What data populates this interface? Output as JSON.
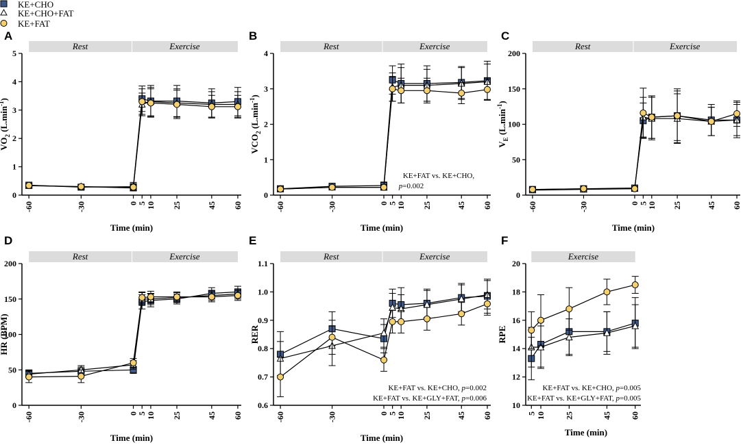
{
  "legend": [
    {
      "label": "KE+CHO",
      "symbol": "square",
      "fill": "#3e5a8a"
    },
    {
      "label": "KE+CHO+FAT",
      "symbol": "triangle",
      "fill": "#ffffff"
    },
    {
      "label": "KE+FAT",
      "symbol": "circle",
      "fill": "#f4d06f"
    }
  ],
  "phase_labels": {
    "rest": "Rest",
    "exercise": "Exercise"
  },
  "chart_data": [
    {
      "panel": "A",
      "type": "line",
      "ylabel": "VO2 (L.min-1)",
      "ylabel_main": "VO",
      "ylabel_sub": "2",
      "ylabel_unit": " (L.min",
      "ylabel_exp": "-1",
      "ylabel_close": ")",
      "xlabel": "Time (min)",
      "xticks": [
        -60,
        -30,
        0,
        5,
        10,
        25,
        45,
        60
      ],
      "xlim": [
        -64,
        62
      ],
      "ylim": [
        0,
        5
      ],
      "yticks": [
        0,
        1,
        2,
        3,
        4,
        5
      ],
      "phases": [
        "Rest",
        "Exercise"
      ],
      "annotation": [],
      "series": [
        {
          "name": "KE+CHO",
          "x": [
            -60,
            -30,
            0,
            5,
            10,
            25,
            45,
            60
          ],
          "values": [
            0.35,
            0.28,
            0.3,
            3.4,
            3.32,
            3.32,
            3.25,
            3.3
          ],
          "error": [
            0.05,
            0.05,
            0.15,
            0.45,
            0.55,
            0.55,
            0.5,
            0.5
          ]
        },
        {
          "name": "KE+CHO+FAT",
          "x": [
            -60,
            -30,
            0,
            5,
            10,
            25,
            45,
            60
          ],
          "values": [
            0.33,
            0.3,
            0.25,
            3.2,
            3.3,
            3.25,
            3.2,
            3.2
          ],
          "error": [
            0.05,
            0.05,
            0.1,
            0.4,
            0.5,
            0.5,
            0.45,
            0.45
          ]
        },
        {
          "name": "KE+FAT",
          "x": [
            -60,
            -30,
            0,
            5,
            10,
            25,
            45,
            60
          ],
          "values": [
            0.34,
            0.3,
            0.28,
            3.3,
            3.25,
            3.2,
            3.12,
            3.12
          ],
          "error": [
            0.05,
            0.05,
            0.1,
            0.45,
            0.5,
            0.5,
            0.4,
            0.4
          ]
        }
      ]
    },
    {
      "panel": "B",
      "type": "line",
      "ylabel": "VCO2 (L.min-1)",
      "ylabel_main": "VCO",
      "ylabel_sub": "2",
      "ylabel_unit": " (L.min",
      "ylabel_exp": "-1",
      "ylabel_close": ")",
      "xlabel": "Time (min)",
      "xticks": [
        -60,
        -30,
        0,
        5,
        10,
        25,
        45,
        60
      ],
      "xlim": [
        -64,
        62
      ],
      "ylim": [
        0,
        4
      ],
      "yticks": [
        0,
        1,
        2,
        3,
        4
      ],
      "phases": [
        "Rest",
        "Exercise"
      ],
      "annotation": [
        "KE+FAT vs. KE+CHO,",
        "p=0.002"
      ],
      "series": [
        {
          "name": "KE+CHO",
          "x": [
            -60,
            -30,
            0,
            5,
            10,
            25,
            45,
            60
          ],
          "values": [
            0.18,
            0.25,
            0.27,
            3.25,
            3.15,
            3.15,
            3.18,
            3.23
          ],
          "error": [
            0.04,
            0.05,
            0.1,
            0.4,
            0.55,
            0.5,
            0.45,
            0.55
          ]
        },
        {
          "name": "KE+CHO+FAT",
          "x": [
            -60,
            -30,
            0,
            5,
            10,
            25,
            45,
            60
          ],
          "values": [
            0.17,
            0.22,
            0.22,
            3.05,
            3.1,
            3.1,
            3.15,
            3.2
          ],
          "error": [
            0.04,
            0.05,
            0.08,
            0.4,
            0.5,
            0.45,
            0.45,
            0.5
          ]
        },
        {
          "name": "KE+FAT",
          "x": [
            -60,
            -30,
            0,
            5,
            10,
            25,
            45,
            60
          ],
          "values": [
            0.17,
            0.22,
            0.22,
            3.0,
            2.95,
            2.95,
            2.88,
            2.98
          ],
          "error": [
            0.04,
            0.05,
            0.08,
            0.35,
            0.35,
            0.35,
            0.3,
            0.3
          ]
        }
      ]
    },
    {
      "panel": "C",
      "type": "line",
      "ylabel": "VE (L.min-1)",
      "ylabel_main": "V",
      "ylabel_sub": "E",
      "ylabel_unit": " (L.min",
      "ylabel_exp": "-1",
      "ylabel_close": ")",
      "xlabel": "Time (min)",
      "xticks": [
        -60,
        -30,
        0,
        5,
        10,
        25,
        45,
        60
      ],
      "xlim": [
        -64,
        62
      ],
      "ylim": [
        0,
        200
      ],
      "yticks": [
        0,
        50,
        100,
        150,
        200
      ],
      "phases": [
        "Rest",
        "Exercise"
      ],
      "annotation": [],
      "series": [
        {
          "name": "KE+CHO",
          "x": [
            -60,
            -30,
            0,
            5,
            10,
            25,
            45,
            60
          ],
          "values": [
            8,
            9,
            10,
            105,
            110,
            112,
            106,
            106
          ],
          "error": [
            2,
            2,
            3,
            25,
            30,
            38,
            22,
            25
          ]
        },
        {
          "name": "KE+CHO+FAT",
          "x": [
            -60,
            -30,
            0,
            5,
            10,
            25,
            45,
            60
          ],
          "values": [
            7,
            8,
            9,
            110,
            108,
            108,
            104,
            106
          ],
          "error": [
            2,
            2,
            3,
            28,
            30,
            35,
            20,
            22
          ]
        },
        {
          "name": "KE+FAT",
          "x": [
            -60,
            -30,
            0,
            5,
            10,
            25,
            45,
            60
          ],
          "values": [
            8,
            9,
            9,
            116,
            110,
            112,
            104,
            115
          ],
          "error": [
            2,
            2,
            3,
            35,
            30,
            35,
            20,
            18
          ]
        }
      ]
    },
    {
      "panel": "D",
      "type": "line",
      "ylabel": "HR (BPM)",
      "xlabel": "Time (min)",
      "xticks": [
        -60,
        -30,
        0,
        5,
        10,
        25,
        45,
        60
      ],
      "xlim": [
        -64,
        62
      ],
      "ylim": [
        0,
        200
      ],
      "yticks": [
        0,
        50,
        100,
        150,
        200
      ],
      "phases": [
        "Rest",
        "Exercise"
      ],
      "annotation": [],
      "series": [
        {
          "name": "KE+CHO",
          "x": [
            -60,
            -30,
            0,
            5,
            10,
            25,
            45,
            60
          ],
          "values": [
            45,
            48,
            50,
            146,
            148,
            150,
            158,
            160
          ],
          "error": [
            5,
            6,
            5,
            10,
            9,
            7,
            8,
            8
          ]
        },
        {
          "name": "KE+CHO+FAT",
          "x": [
            -60,
            -30,
            0,
            5,
            10,
            25,
            45,
            60
          ],
          "values": [
            44,
            50,
            57,
            150,
            150,
            152,
            155,
            157
          ],
          "error": [
            5,
            6,
            6,
            9,
            8,
            7,
            7,
            7
          ]
        },
        {
          "name": "KE+FAT",
          "x": [
            -60,
            -30,
            0,
            5,
            10,
            25,
            45,
            60
          ],
          "values": [
            40,
            41,
            60,
            152,
            153,
            153,
            153,
            155
          ],
          "error": [
            8,
            9,
            6,
            8,
            8,
            7,
            7,
            7
          ]
        }
      ]
    },
    {
      "panel": "E",
      "type": "line",
      "ylabel": "RER",
      "xlabel": "Time (min)",
      "xticks": [
        -60,
        -30,
        0,
        5,
        10,
        25,
        45,
        60
      ],
      "xlim": [
        -64,
        62
      ],
      "ylim": [
        0.6,
        1.1
      ],
      "yticks": [
        0.6,
        0.7,
        0.8,
        0.9,
        1.0,
        1.1
      ],
      "phases": [
        "Rest",
        "Exercise"
      ],
      "annotation": [
        "KE+FAT vs. KE+CHO, p=0.002",
        "KE+FAT vs. KE+GLY+FAT, p=0.006"
      ],
      "series": [
        {
          "name": "KE+CHO",
          "x": [
            -60,
            -30,
            0,
            5,
            10,
            25,
            45,
            60
          ],
          "values": [
            0.78,
            0.87,
            0.835,
            0.96,
            0.955,
            0.96,
            0.98,
            0.985
          ],
          "error": [
            0.08,
            0.06,
            0.05,
            0.05,
            0.06,
            0.05,
            0.05,
            0.06
          ]
        },
        {
          "name": "KE+CHO+FAT",
          "x": [
            -60,
            -30,
            0,
            5,
            10,
            25,
            45,
            60
          ],
          "values": [
            0.765,
            0.81,
            0.855,
            0.945,
            0.94,
            0.955,
            0.975,
            0.99
          ],
          "error": [
            0.06,
            0.07,
            0.05,
            0.05,
            0.05,
            0.05,
            0.05,
            0.05
          ]
        },
        {
          "name": "KE+FAT",
          "x": [
            -60,
            -30,
            0,
            5,
            10,
            25,
            45,
            60
          ],
          "values": [
            0.7,
            0.84,
            0.76,
            0.895,
            0.895,
            0.905,
            0.923,
            0.958
          ],
          "error": [
            0.07,
            0.06,
            0.04,
            0.04,
            0.04,
            0.04,
            0.04,
            0.04
          ]
        }
      ]
    },
    {
      "panel": "F",
      "type": "line",
      "ylabel": "RPE",
      "xlabel": "Time (min)",
      "xticks": [
        5,
        10,
        25,
        45,
        60
      ],
      "xlim": [
        2,
        63
      ],
      "ylim": [
        10,
        20
      ],
      "yticks": [
        10,
        12,
        14,
        16,
        18,
        20
      ],
      "phases": [
        "Exercise"
      ],
      "annotation": [
        "KE+FAT vs. KE+CHO, p=0.005",
        "KE+FAT vs. KE+GLY+FAT, p=0.005"
      ],
      "series": [
        {
          "name": "KE+CHO",
          "x": [
            5,
            10,
            25,
            45,
            60
          ],
          "values": [
            13.3,
            14.3,
            15.2,
            15.2,
            15.8
          ],
          "error": [
            1.5,
            1.6,
            1.6,
            1.4,
            1.8
          ]
        },
        {
          "name": "KE+CHO+FAT",
          "x": [
            5,
            10,
            25,
            45,
            60
          ],
          "values": [
            14.1,
            14.1,
            14.8,
            15.1,
            15.6
          ],
          "error": [
            1.4,
            1.5,
            1.3,
            1.5,
            1.5
          ]
        },
        {
          "name": "KE+FAT",
          "x": [
            5,
            10,
            25,
            45,
            60
          ],
          "values": [
            15.3,
            16.0,
            16.8,
            18.0,
            18.5
          ],
          "error": [
            1.3,
            1.8,
            1.5,
            0.9,
            0.6
          ]
        }
      ]
    }
  ]
}
